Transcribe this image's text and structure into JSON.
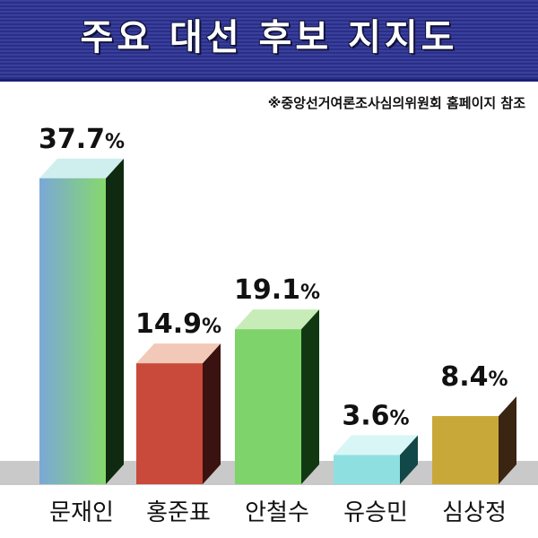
{
  "header": {
    "title": "주요 대선 후보 지지도"
  },
  "source_note": "※중앙선거여론조사심의위원회 홈페이지 참조",
  "chart_data": {
    "type": "bar",
    "title": "주요 대선 후보 지지도",
    "xlabel": "",
    "ylabel": "",
    "ylim": [
      0,
      40
    ],
    "grid": false,
    "unit": "%",
    "categories": [
      "문재인",
      "홍준표",
      "안철수",
      "유승민",
      "심상정"
    ],
    "values": [
      37.7,
      14.9,
      19.1,
      3.6,
      8.4
    ],
    "value_labels": [
      "37.7%",
      "14.9%",
      "19.1%",
      "3.6%",
      "8.4%"
    ],
    "colors": {
      "front": [
        "#80c4b0",
        "#c9493a",
        "#7ed36a",
        "#8ee0e0",
        "#c9a83a"
      ],
      "top": [
        "#cfeeee",
        "#f2c8b8",
        "#c8ecb8",
        "#d8f6f6",
        "#ffffff"
      ],
      "side": [
        "#0f2a10",
        "#3a1210",
        "#123812",
        "#134848",
        "#3a2412"
      ]
    }
  }
}
